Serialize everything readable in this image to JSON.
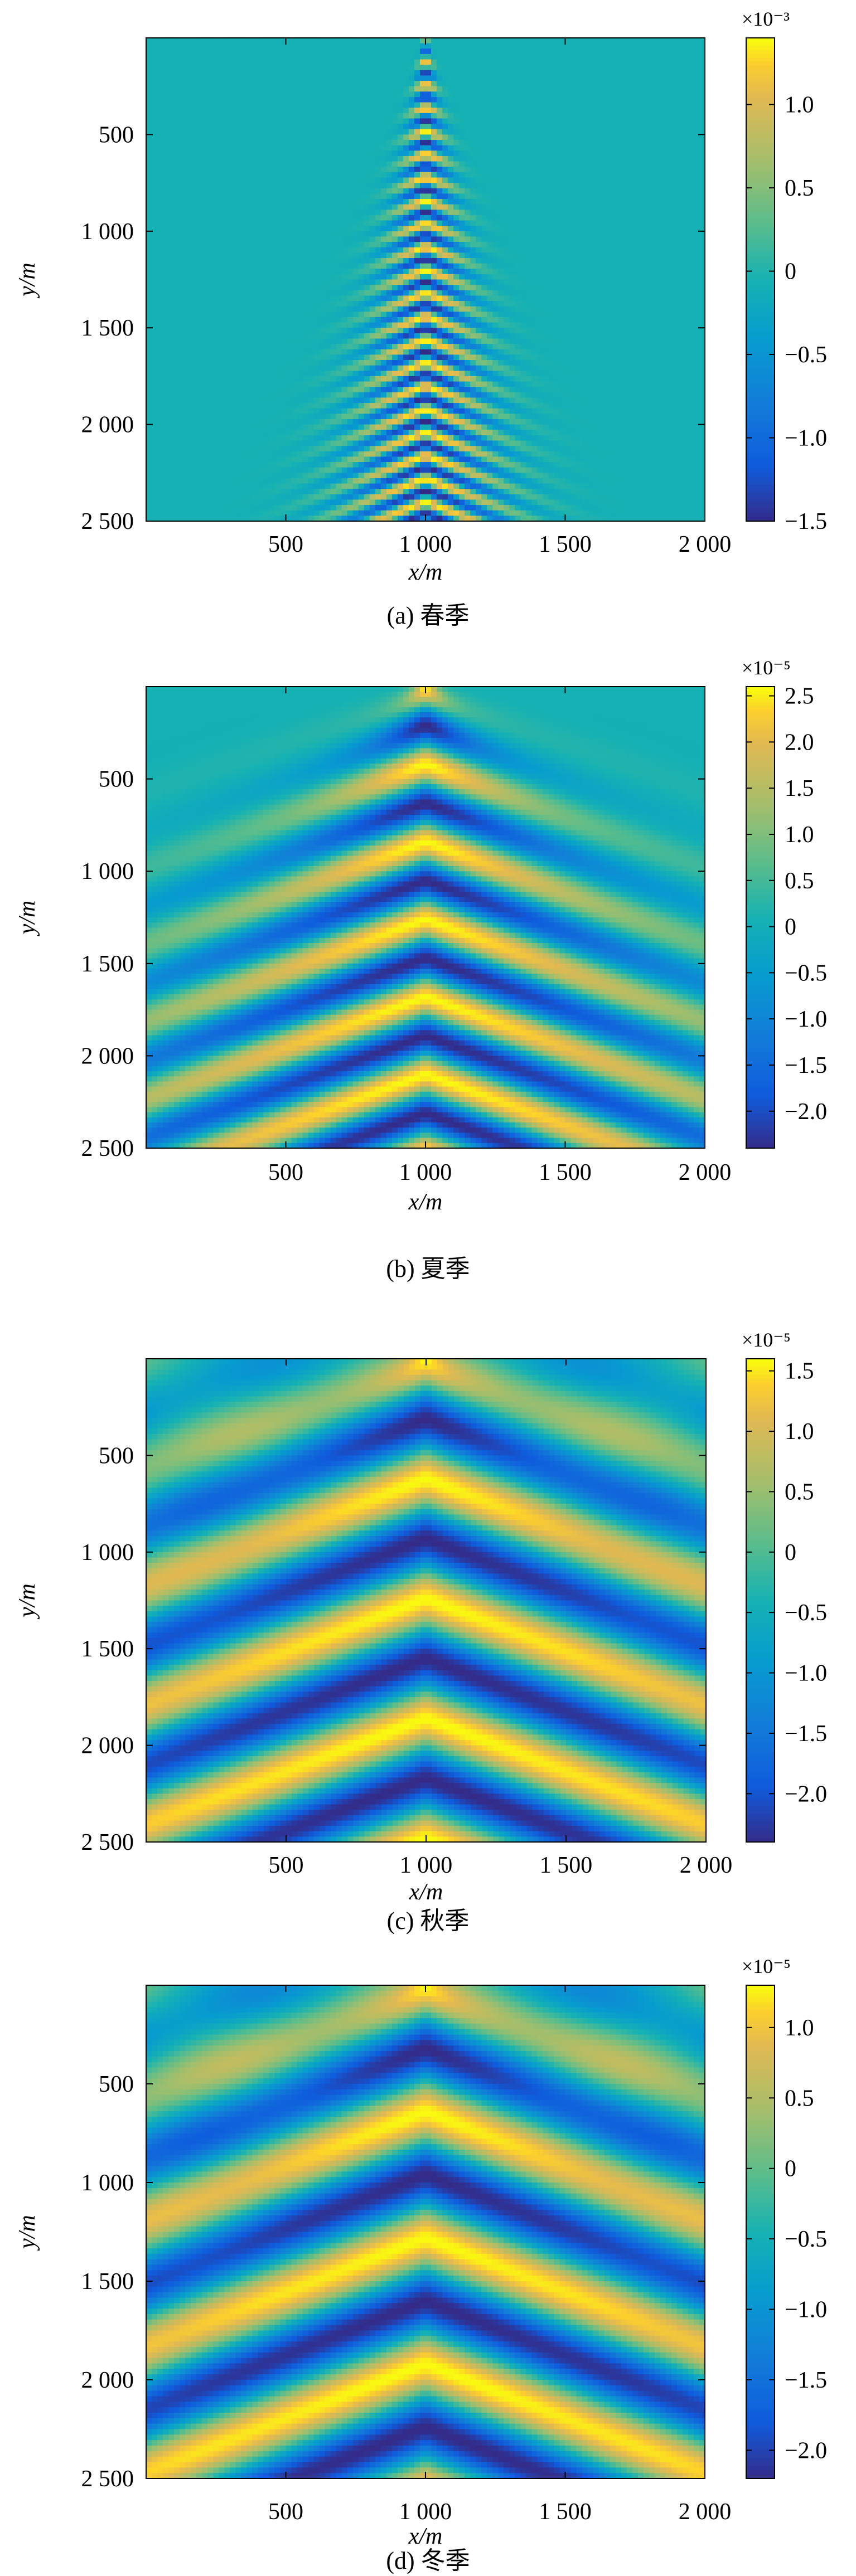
{
  "chart_data": [
    {
      "type": "heatmap",
      "caption": "(a) 春季",
      "xlabel": "x/m",
      "ylabel": "y/m",
      "xlim": [
        0,
        2000
      ],
      "ylim": [
        0,
        2500
      ],
      "x_ticks": [
        500,
        1000,
        1500,
        2000
      ],
      "x_tick_labels": [
        "500",
        "1 000",
        "1 500",
        "2 000"
      ],
      "y_ticks": [
        500,
        1000,
        1500,
        2000,
        2500
      ],
      "y_tick_labels": [
        "500",
        "1 000",
        "1 500",
        "2 000",
        "2 500"
      ],
      "colorbar": {
        "exponent": "×10⁻³",
        "range": [
          -1.5,
          1.4
        ],
        "ticks": [
          1.0,
          0.5,
          0,
          -0.5,
          -1.0,
          -1.5
        ],
        "tick_labels": [
          "1.0",
          "0.5",
          "0",
          "−0.5",
          "−1.0",
          "−1.5"
        ]
      },
      "colormap": "parula",
      "pattern": {
        "source_x": 1000,
        "spread": 0.12,
        "wavelength": 120,
        "strength": 1.0,
        "background": 0.0
      }
    },
    {
      "type": "heatmap",
      "caption": "(b) 夏季",
      "xlabel": "x/m",
      "ylabel": "y/m",
      "xlim": [
        0,
        2000
      ],
      "ylim": [
        0,
        2500
      ],
      "x_ticks": [
        500,
        1000,
        1500,
        2000
      ],
      "x_tick_labels": [
        "500",
        "1 000",
        "1 500",
        "2 000"
      ],
      "y_ticks": [
        500,
        1000,
        1500,
        2000,
        2500
      ],
      "y_tick_labels": [
        "500",
        "1 000",
        "1 500",
        "2 000",
        "2 500"
      ],
      "colorbar": {
        "exponent": "×10⁻⁵",
        "range": [
          -2.4,
          2.6
        ],
        "ticks": [
          2.5,
          2.0,
          1.5,
          1.0,
          0.5,
          0,
          -0.5,
          -1.0,
          -1.5,
          -2.0
        ],
        "tick_labels": [
          "2.5",
          "2.0",
          "1.5",
          "1.0",
          "0.5",
          "0",
          "−0.5",
          "−1.0",
          "−1.5",
          "−2.0"
        ]
      },
      "colormap": "parula",
      "pattern": {
        "source_x": 1000,
        "spread": 0.55,
        "wavelength": 420,
        "strength": 1.0,
        "background": 0.0
      }
    },
    {
      "type": "heatmap",
      "caption": "(c) 秋季",
      "xlabel": "x/m",
      "ylabel": "y/m",
      "xlim": [
        0,
        2000
      ],
      "ylim": [
        0,
        2500
      ],
      "x_ticks": [
        500,
        1000,
        1500,
        2000
      ],
      "x_tick_labels": [
        "500",
        "1 000",
        "1 500",
        "2 000"
      ],
      "y_ticks": [
        500,
        1000,
        1500,
        2000,
        2500
      ],
      "y_tick_labels": [
        "500",
        "1 000",
        "1 500",
        "2 000",
        "2 500"
      ],
      "colorbar": {
        "exponent": "×10⁻⁵",
        "range": [
          -2.4,
          1.6
        ],
        "ticks": [
          1.5,
          1.0,
          0.5,
          0,
          -0.5,
          -1.0,
          -1.5,
          -2.0
        ],
        "tick_labels": [
          "1.5",
          "1.0",
          "0.5",
          "0",
          "−0.5",
          "−1.0",
          "−1.5",
          "−2.0"
        ]
      },
      "colormap": "parula",
      "pattern": {
        "source_x": 1000,
        "spread": 1.15,
        "wavelength": 620,
        "strength": 1.0,
        "background": 0.15
      }
    },
    {
      "type": "heatmap",
      "caption": "(d) 冬季",
      "xlabel": "x/m",
      "ylabel": "y/m",
      "xlim": [
        0,
        2000
      ],
      "ylim": [
        0,
        2500
      ],
      "x_ticks": [
        500,
        1000,
        1500,
        2000
      ],
      "x_tick_labels": [
        "500",
        "1 000",
        "1 500",
        "2 000"
      ],
      "y_ticks": [
        500,
        1000,
        1500,
        2000,
        2500
      ],
      "y_tick_labels": [
        "500",
        "1 000",
        "1 500",
        "2 000",
        "2 500"
      ],
      "colorbar": {
        "exponent": "×10⁻⁵",
        "range": [
          -2.2,
          1.3
        ],
        "ticks": [
          1.0,
          0.5,
          0,
          -0.5,
          -1.0,
          -1.5,
          -2.0
        ],
        "tick_labels": [
          "1.0",
          "0.5",
          "0",
          "−0.5",
          "−1.0",
          "−1.5",
          "−2.0"
        ]
      },
      "colormap": "parula",
      "pattern": {
        "source_x": 1000,
        "spread": 1.25,
        "wavelength": 640,
        "strength": 1.0,
        "background": 0.2
      }
    }
  ]
}
